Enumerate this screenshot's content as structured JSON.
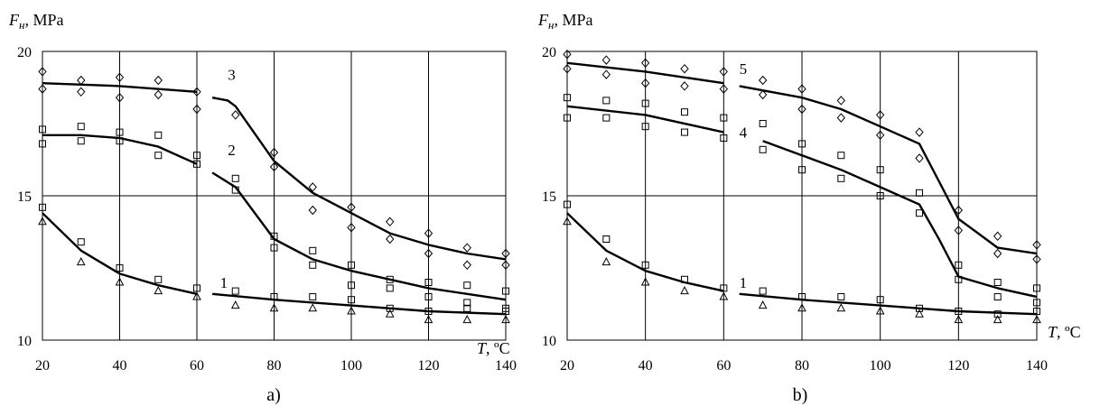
{
  "chart_data": [
    {
      "type": "scatter",
      "panel_label": "a)",
      "ylabel_main": "F",
      "ylabel_sub": "н",
      "ylabel_unit": ", MPa",
      "xlabel_main": "T",
      "xlabel_unit": ", ºC",
      "xlim": [
        20,
        140
      ],
      "ylim": [
        10,
        20
      ],
      "x_ticks": [
        20,
        40,
        60,
        80,
        100,
        120,
        140
      ],
      "y_ticks": [
        10,
        15,
        20
      ],
      "curve_labels": [
        {
          "text": "3",
          "x": 68,
          "y": 19.2
        },
        {
          "text": "2",
          "x": 68,
          "y": 16.6
        },
        {
          "text": "1",
          "x": 66,
          "y": 12.0
        }
      ],
      "curves": [
        {
          "points": [
            [
              20,
              18.9
            ],
            [
              40,
              18.8
            ],
            [
              60,
              18.6
            ]
          ]
        },
        {
          "points": [
            [
              64,
              18.4
            ],
            [
              68,
              18.3
            ],
            [
              70,
              18.1
            ],
            [
              80,
              16.2
            ],
            [
              90,
              15.1
            ],
            [
              100,
              14.4
            ],
            [
              110,
              13.7
            ],
            [
              120,
              13.3
            ],
            [
              130,
              13.0
            ],
            [
              140,
              12.8
            ]
          ]
        },
        {
          "points": [
            [
              20,
              17.1
            ],
            [
              30,
              17.1
            ],
            [
              40,
              17.0
            ],
            [
              50,
              16.7
            ],
            [
              60,
              16.1
            ]
          ]
        },
        {
          "points": [
            [
              64,
              15.8
            ],
            [
              70,
              15.3
            ],
            [
              80,
              13.5
            ],
            [
              90,
              12.8
            ],
            [
              100,
              12.4
            ],
            [
              110,
              12.1
            ],
            [
              120,
              11.8
            ],
            [
              130,
              11.6
            ],
            [
              140,
              11.4
            ]
          ]
        },
        {
          "points": [
            [
              20,
              14.4
            ],
            [
              30,
              13.1
            ],
            [
              40,
              12.3
            ],
            [
              50,
              11.9
            ],
            [
              60,
              11.6
            ]
          ]
        },
        {
          "points": [
            [
              64,
              11.6
            ],
            [
              80,
              11.4
            ],
            [
              100,
              11.2
            ],
            [
              120,
              11.0
            ],
            [
              140,
              10.9
            ]
          ]
        }
      ],
      "series": [
        {
          "marker": "diamond",
          "x": [
            20,
            20,
            30,
            30,
            40,
            40,
            50,
            50,
            60,
            60,
            70,
            80,
            80,
            90,
            90,
            100,
            100,
            110,
            110,
            120,
            120,
            130,
            130,
            140,
            140
          ],
          "values": [
            19.3,
            18.7,
            19.0,
            18.6,
            19.1,
            18.4,
            19.0,
            18.5,
            18.6,
            18.0,
            17.8,
            16.5,
            16.0,
            15.3,
            14.5,
            14.6,
            13.9,
            14.1,
            13.5,
            13.7,
            13.0,
            13.2,
            12.6,
            13.0,
            12.6
          ]
        },
        {
          "marker": "square",
          "x": [
            20,
            20,
            20,
            30,
            30,
            40,
            40,
            50,
            50,
            60,
            60,
            70,
            70,
            80,
            80,
            90,
            90,
            100,
            100,
            110,
            110,
            120,
            120,
            130,
            130,
            140,
            140
          ],
          "values": [
            17.3,
            16.8,
            14.6,
            17.4,
            16.9,
            17.2,
            16.9,
            17.1,
            16.4,
            16.4,
            16.1,
            15.6,
            15.2,
            13.6,
            13.2,
            13.1,
            12.6,
            12.6,
            11.9,
            12.1,
            11.8,
            12.0,
            11.5,
            11.9,
            11.3,
            11.7,
            11.1
          ],
          "note": ""
        },
        {
          "marker": "square_low",
          "x": [
            30,
            40,
            50,
            60,
            70,
            80,
            90,
            100,
            110,
            120,
            130,
            140
          ],
          "values": [
            13.4,
            12.5,
            12.1,
            11.8,
            11.7,
            11.5,
            11.5,
            11.4,
            11.1,
            11.0,
            11.1,
            11.0
          ]
        },
        {
          "marker": "triangle",
          "x": [
            20,
            30,
            40,
            50,
            60,
            70,
            80,
            90,
            100,
            110,
            120,
            130,
            140
          ],
          "values": [
            14.1,
            12.7,
            12.0,
            11.7,
            11.5,
            11.2,
            11.1,
            11.1,
            11.0,
            10.9,
            10.7,
            10.7,
            10.7
          ]
        }
      ]
    },
    {
      "type": "scatter",
      "panel_label": "b)",
      "ylabel_main": "F",
      "ylabel_sub": "н",
      "ylabel_unit": ", MPa",
      "xlabel_main": "T",
      "xlabel_unit": ", ºC",
      "xlim": [
        20,
        140
      ],
      "ylim": [
        10,
        20
      ],
      "x_ticks": [
        20,
        40,
        60,
        80,
        100,
        120,
        140
      ],
      "y_ticks": [
        10,
        15,
        20
      ],
      "curve_labels": [
        {
          "text": "5",
          "x": 64,
          "y": 19.4
        },
        {
          "text": "4",
          "x": 64,
          "y": 17.2
        },
        {
          "text": "1",
          "x": 64,
          "y": 12.0
        }
      ],
      "curves": [
        {
          "points": [
            [
              20,
              19.6
            ],
            [
              40,
              19.3
            ],
            [
              60,
              18.9
            ]
          ]
        },
        {
          "points": [
            [
              64,
              18.8
            ],
            [
              80,
              18.4
            ],
            [
              90,
              18.0
            ],
            [
              100,
              17.4
            ],
            [
              110,
              16.8
            ],
            [
              115,
              15.5
            ],
            [
              120,
              14.2
            ],
            [
              130,
              13.2
            ],
            [
              140,
              13.0
            ]
          ]
        },
        {
          "points": [
            [
              20,
              18.1
            ],
            [
              40,
              17.8
            ],
            [
              60,
              17.2
            ]
          ]
        },
        {
          "points": [
            [
              70,
              16.9
            ],
            [
              80,
              16.4
            ],
            [
              90,
              15.9
            ],
            [
              100,
              15.3
            ],
            [
              110,
              14.7
            ],
            [
              115,
              13.5
            ],
            [
              120,
              12.2
            ],
            [
              130,
              11.8
            ],
            [
              140,
              11.5
            ]
          ]
        },
        {
          "points": [
            [
              20,
              14.4
            ],
            [
              30,
              13.1
            ],
            [
              40,
              12.4
            ],
            [
              50,
              12.0
            ],
            [
              60,
              11.7
            ]
          ]
        },
        {
          "points": [
            [
              64,
              11.6
            ],
            [
              80,
              11.4
            ],
            [
              100,
              11.2
            ],
            [
              120,
              11.0
            ],
            [
              140,
              10.9
            ]
          ]
        }
      ],
      "series": [
        {
          "marker": "diamond",
          "x": [
            20,
            20,
            30,
            30,
            40,
            40,
            50,
            50,
            60,
            60,
            70,
            70,
            80,
            80,
            90,
            90,
            100,
            100,
            110,
            110,
            120,
            120,
            130,
            130,
            140,
            140
          ],
          "values": [
            19.9,
            19.4,
            19.7,
            19.2,
            19.6,
            18.9,
            19.4,
            18.8,
            19.3,
            18.7,
            19.0,
            18.5,
            18.7,
            18.0,
            18.3,
            17.7,
            17.8,
            17.1,
            17.2,
            16.3,
            14.5,
            13.8,
            13.6,
            13.0,
            13.3,
            12.8
          ]
        },
        {
          "marker": "square",
          "x": [
            20,
            20,
            30,
            30,
            40,
            40,
            50,
            50,
            60,
            60,
            70,
            70,
            80,
            80,
            90,
            90,
            100,
            100,
            110,
            110,
            120,
            120,
            130,
            130,
            140,
            140
          ],
          "values": [
            18.4,
            17.7,
            18.3,
            17.7,
            18.2,
            17.4,
            17.9,
            17.2,
            17.7,
            17.0,
            17.5,
            16.6,
            16.8,
            15.9,
            16.4,
            15.6,
            15.9,
            15.0,
            15.1,
            14.4,
            12.6,
            12.1,
            12.0,
            11.5,
            11.8,
            11.3
          ]
        },
        {
          "marker": "square_low",
          "x": [
            20,
            30,
            40,
            50,
            60,
            70,
            80,
            90,
            100,
            110,
            120,
            130,
            140
          ],
          "values": [
            14.7,
            13.5,
            12.6,
            12.1,
            11.8,
            11.7,
            11.5,
            11.5,
            11.4,
            11.1,
            11.0,
            10.9,
            11.0
          ]
        },
        {
          "marker": "triangle",
          "x": [
            20,
            30,
            40,
            50,
            60,
            70,
            80,
            90,
            100,
            110,
            120,
            130,
            140
          ],
          "values": [
            14.1,
            12.7,
            12.0,
            11.7,
            11.5,
            11.2,
            11.1,
            11.1,
            11.0,
            10.9,
            10.7,
            10.7,
            10.7
          ]
        }
      ]
    }
  ]
}
